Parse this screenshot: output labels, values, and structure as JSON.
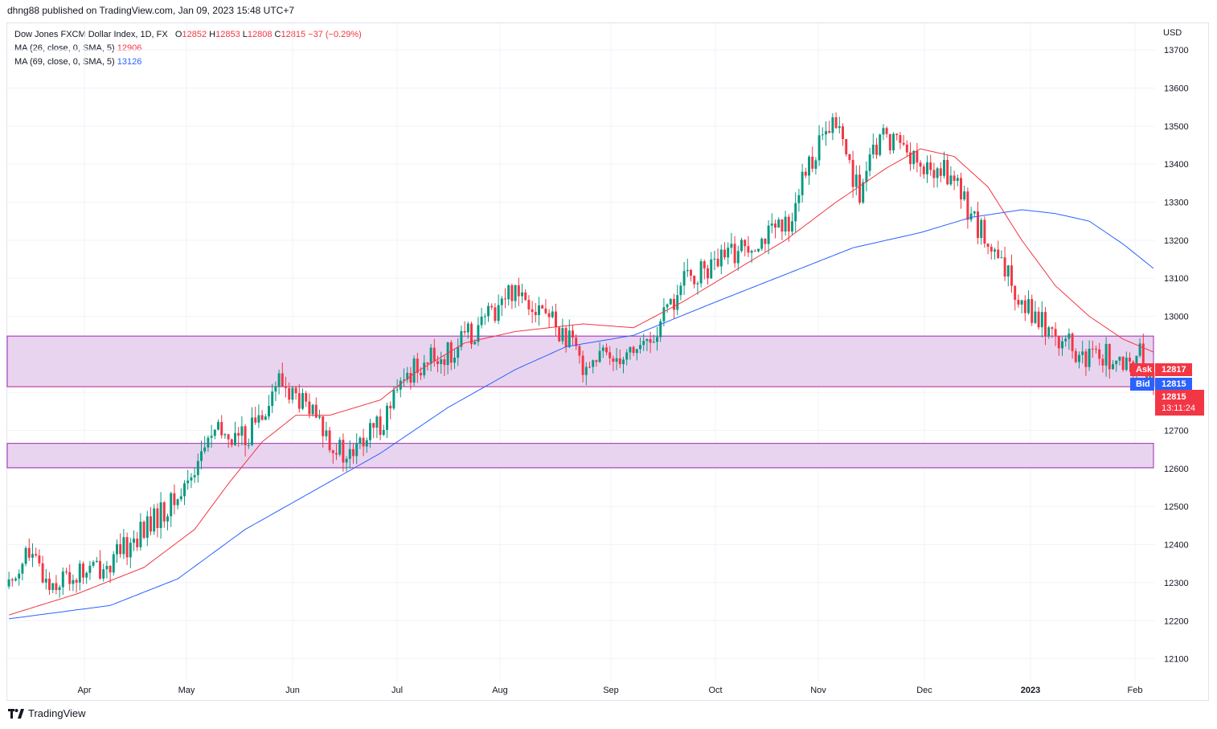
{
  "header": {
    "published": "dhng88 published on TradingView.com, Jan 09, 2023 15:48 UTC+7"
  },
  "legend": {
    "symbol": "Dow Jones FXCM Dollar Index, 1D, FX",
    "open_label": "O",
    "open": "12852",
    "high_label": "H",
    "high": "12853",
    "low_label": "L",
    "low": "12808",
    "close_label": "C",
    "close": "12815",
    "change": "−37 (−0.29%)",
    "ma1_label": "MA (26, close, 0, SMA, 5)",
    "ma1_value": "12906",
    "ma2_label": "MA (69, close, 0, SMA, 5)",
    "ma2_value": "13126"
  },
  "price_axis": {
    "currency": "USD",
    "ask_label": "Ask",
    "ask_value": "12817",
    "bid_label": "Bid",
    "bid_value": "12815",
    "last_value": "12815",
    "countdown": "13:11:24"
  },
  "footer": {
    "brand": "TradingView"
  },
  "colors": {
    "up": "#089981",
    "down": "#f23645",
    "ma26": "#f23645",
    "ma69": "#2962ff",
    "zone_fill": "#e9d4ef",
    "zone_line": "#9c27b0"
  },
  "chart_data": {
    "type": "candlestick",
    "title": "Dow Jones FXCM Dollar Index, 1D, FX",
    "y_ticks": [
      12100,
      12200,
      12300,
      12400,
      12500,
      12600,
      12700,
      12800,
      12900,
      13000,
      13100,
      13200,
      13300,
      13400,
      13500,
      13600,
      13700
    ],
    "y_range": [
      12040,
      13770
    ],
    "x_labels": [
      "Apr",
      "May",
      "Jun",
      "Jul",
      "Aug",
      "Sep",
      "Oct",
      "Nov",
      "Dec",
      "2023",
      "Feb"
    ],
    "zones": [
      {
        "name": "upper-zone",
        "low": 12815,
        "high": 12948
      },
      {
        "name": "lower-zone",
        "low": 12602,
        "high": 12666
      }
    ],
    "series": [
      {
        "name": "price",
        "kind": "candles",
        "close_path": [
          [
            0,
            12290
          ],
          [
            5,
            12380
          ],
          [
            12,
            12300
          ],
          [
            20,
            12320
          ],
          [
            30,
            12350
          ],
          [
            40,
            12440
          ],
          [
            50,
            12520
          ],
          [
            60,
            12690
          ],
          [
            70,
            12680
          ],
          [
            80,
            12830
          ],
          [
            88,
            12760
          ],
          [
            95,
            12680
          ],
          [
            100,
            12620
          ],
          [
            110,
            12720
          ],
          [
            120,
            12870
          ],
          [
            130,
            12900
          ],
          [
            140,
            12980
          ],
          [
            150,
            13080
          ],
          [
            160,
            13000
          ],
          [
            170,
            12880
          ],
          [
            180,
            12900
          ],
          [
            190,
            12930
          ],
          [
            200,
            13090
          ],
          [
            210,
            13140
          ],
          [
            220,
            13200
          ],
          [
            230,
            13230
          ],
          [
            238,
            13420
          ],
          [
            245,
            13510
          ],
          [
            252,
            13320
          ],
          [
            258,
            13470
          ],
          [
            265,
            13460
          ],
          [
            270,
            13380
          ],
          [
            278,
            13380
          ],
          [
            285,
            13270
          ],
          [
            292,
            13150
          ],
          [
            300,
            13050
          ],
          [
            305,
            12990
          ],
          [
            312,
            12940
          ],
          [
            318,
            12880
          ],
          [
            325,
            12900
          ],
          [
            330,
            12850
          ],
          [
            335,
            12900
          ],
          [
            339,
            12815
          ]
        ]
      },
      {
        "name": "MA (26, close, 0, SMA, 5)",
        "kind": "line",
        "color": "#f23645",
        "points": [
          [
            0,
            12215
          ],
          [
            20,
            12270
          ],
          [
            40,
            12340
          ],
          [
            55,
            12440
          ],
          [
            65,
            12560
          ],
          [
            75,
            12670
          ],
          [
            85,
            12740
          ],
          [
            95,
            12740
          ],
          [
            110,
            12780
          ],
          [
            120,
            12850
          ],
          [
            135,
            12930
          ],
          [
            150,
            12960
          ],
          [
            170,
            12980
          ],
          [
            185,
            12970
          ],
          [
            200,
            13040
          ],
          [
            215,
            13120
          ],
          [
            230,
            13200
          ],
          [
            245,
            13300
          ],
          [
            260,
            13390
          ],
          [
            270,
            13440
          ],
          [
            280,
            13420
          ],
          [
            290,
            13340
          ],
          [
            300,
            13200
          ],
          [
            310,
            13080
          ],
          [
            320,
            13000
          ],
          [
            330,
            12940
          ],
          [
            339,
            12906
          ]
        ]
      },
      {
        "name": "MA (69, close, 0, SMA, 5)",
        "kind": "line",
        "color": "#2962ff",
        "points": [
          [
            0,
            12205
          ],
          [
            30,
            12240
          ],
          [
            50,
            12310
          ],
          [
            70,
            12440
          ],
          [
            90,
            12540
          ],
          [
            110,
            12640
          ],
          [
            130,
            12760
          ],
          [
            150,
            12860
          ],
          [
            165,
            12920
          ],
          [
            185,
            12950
          ],
          [
            210,
            13040
          ],
          [
            230,
            13110
          ],
          [
            250,
            13180
          ],
          [
            270,
            13220
          ],
          [
            285,
            13260
          ],
          [
            300,
            13280
          ],
          [
            310,
            13270
          ],
          [
            320,
            13250
          ],
          [
            330,
            13190
          ],
          [
            339,
            13126
          ]
        ]
      }
    ]
  }
}
